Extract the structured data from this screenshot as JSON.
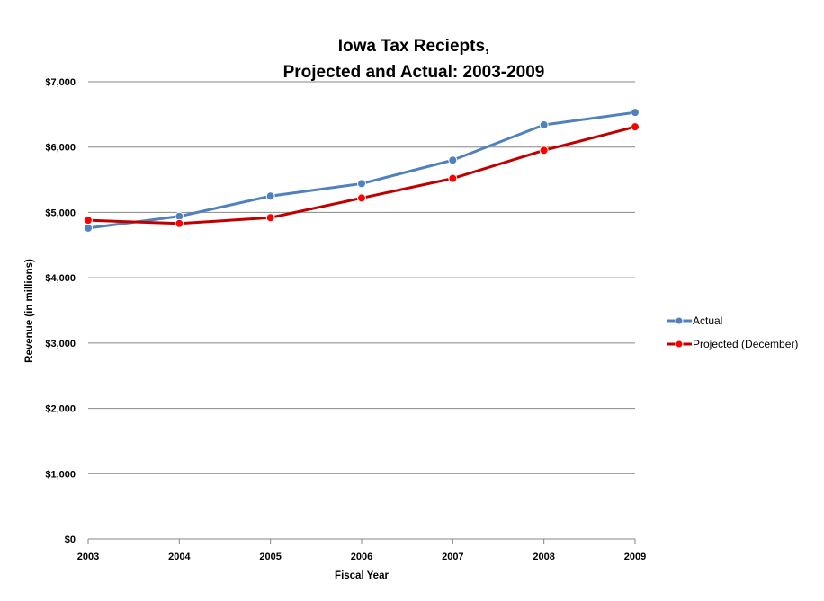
{
  "chart_data": {
    "type": "line",
    "title": [
      "Iowa Tax Reciepts,",
      "Projected and Actual: 2003-2009"
    ],
    "xlabel": "Fiscal Year",
    "ylabel": "Revenue (in millions)",
    "categories": [
      "2003",
      "2004",
      "2005",
      "2006",
      "2007",
      "2008",
      "2009"
    ],
    "ylim": [
      0,
      7000
    ],
    "yticks": [
      0,
      1000,
      2000,
      3000,
      4000,
      5000,
      6000,
      7000
    ],
    "ytick_labels": [
      "$0",
      "$1,000",
      "$2,000",
      "$3,000",
      "$4,000",
      "$5,000",
      "$6,000",
      "$7,000"
    ],
    "grid": "horizontal",
    "legend_position": "right",
    "series": [
      {
        "name": "Actual",
        "color": "#4f81bd",
        "values": [
          4760,
          4940,
          5250,
          5440,
          5800,
          6340,
          6530
        ]
      },
      {
        "name": "Projected (December)",
        "color": "#c00000",
        "marker_color": "#ff0000",
        "values": [
          4880,
          4830,
          4920,
          5220,
          5520,
          5950,
          6310
        ]
      }
    ]
  }
}
